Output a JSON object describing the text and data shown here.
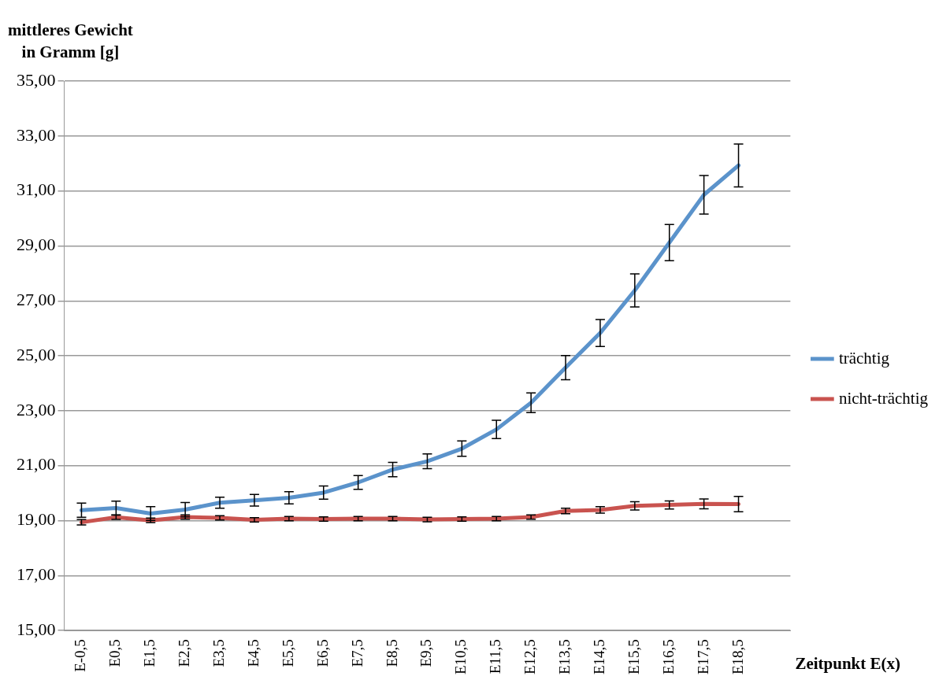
{
  "chart_data": {
    "type": "line",
    "ylabel": "mittleres Gewicht\nin Gramm [g]",
    "xlabel": "Zeitpunkt E(x)",
    "categories": [
      "E-0,5",
      "E0,5",
      "E1,5",
      "E2,5",
      "E3,5",
      "E4,5",
      "E5,5",
      "E6,5",
      "E7,5",
      "E8,5",
      "E9,5",
      "E10,5",
      "E11,5",
      "E12,5",
      "E13,5",
      "E14,5",
      "E15,5",
      "E16,5",
      "E17,5",
      "E18,5",
      null
    ],
    "series": [
      {
        "name": "trächtig",
        "color": "#5b93cb",
        "values": [
          19.38,
          19.46,
          19.26,
          19.4,
          19.65,
          19.74,
          19.83,
          20.02,
          20.39,
          20.86,
          21.16,
          21.62,
          22.32,
          23.29,
          24.57,
          25.83,
          27.38,
          29.12,
          30.86,
          31.93,
          null
        ],
        "errors": [
          0.26,
          0.25,
          0.25,
          0.26,
          0.2,
          0.21,
          0.22,
          0.24,
          0.25,
          0.26,
          0.27,
          0.28,
          0.33,
          0.36,
          0.44,
          0.49,
          0.6,
          0.66,
          0.7,
          0.78,
          null
        ]
      },
      {
        "name": "nicht-trächtig",
        "color": "#c9534f",
        "values": [
          18.94,
          19.12,
          19.01,
          19.13,
          19.1,
          19.03,
          19.07,
          19.06,
          19.07,
          19.07,
          19.04,
          19.06,
          19.07,
          19.13,
          19.35,
          19.39,
          19.54,
          19.57,
          19.61,
          19.6,
          null
        ],
        "errors": [
          0.1,
          0.08,
          0.08,
          0.08,
          0.08,
          0.08,
          0.08,
          0.08,
          0.08,
          0.08,
          0.08,
          0.08,
          0.08,
          0.08,
          0.1,
          0.12,
          0.15,
          0.15,
          0.18,
          0.28,
          null
        ]
      }
    ],
    "ylim": [
      15,
      35
    ],
    "yticks": [
      {
        "value": 15,
        "label": "15,00"
      },
      {
        "value": 17,
        "label": "17,00"
      },
      {
        "value": 19,
        "label": "19,00"
      },
      {
        "value": 21,
        "label": "21,00"
      },
      {
        "value": 23,
        "label": "23,00"
      },
      {
        "value": 25,
        "label": "25,00"
      },
      {
        "value": 27,
        "label": "27,00"
      },
      {
        "value": 29,
        "label": "29,00"
      },
      {
        "value": 31,
        "label": "31,00"
      },
      {
        "value": 33,
        "label": "33,00"
      },
      {
        "value": 35,
        "label": "35,00"
      }
    ],
    "grid": "y",
    "legend": "right",
    "line_style": "solid"
  }
}
